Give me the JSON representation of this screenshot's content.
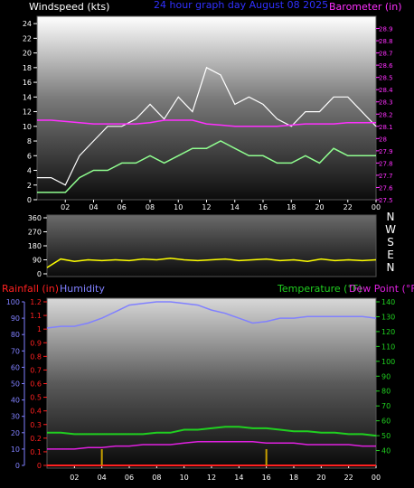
{
  "header": {
    "windspeed_label": "Windspeed (kts)",
    "title": "24 hour graph day   August 08 2025",
    "barometer_label": "Barometer (in)"
  },
  "lower_header": {
    "rainfall_label": "Rainfall (in)",
    "humidity_label": "Humidity",
    "temperature_label": "Temperature (°F)",
    "dewpoint_label": "Dew Point (°F)"
  },
  "colors": {
    "wind_axis": "#ffffff",
    "title": "#3030ff",
    "barometer": "#ff30ff",
    "wind_gust": "#ffffff",
    "wind_avg": "#90ff90",
    "direction": "#ffff00",
    "rainfall": "#ff2020",
    "humidity": "#8080ff",
    "temperature": "#20d020",
    "dewpoint": "#e020e0",
    "rain_tick": "#c8a000"
  },
  "chart_data": [
    {
      "type": "line",
      "name": "wind-barometer",
      "x_ticks": [
        "02",
        "04",
        "06",
        "08",
        "10",
        "12",
        "14",
        "16",
        "18",
        "20",
        "22",
        "00"
      ],
      "xlim": [
        0,
        24
      ],
      "left_axis": {
        "ticks": [
          0,
          2,
          4,
          6,
          8,
          10,
          12,
          14,
          16,
          18,
          20,
          22,
          24
        ],
        "ylim": [
          0,
          25
        ]
      },
      "right_axis": {
        "ticks": [
          "27.5",
          "27.6",
          "27.7",
          "27.8",
          "27.9",
          "28",
          "28.1",
          "28.2",
          "28.3",
          "28.4",
          "28.5",
          "28.6",
          "28.7",
          "28.8",
          "28.9"
        ],
        "ylim": [
          27.5,
          29.0
        ]
      },
      "series": [
        {
          "axis": "right",
          "x": [
            0,
            1,
            2,
            3,
            4,
            5,
            6,
            7,
            8,
            9,
            10,
            11,
            12,
            13,
            14,
            15,
            16,
            17,
            18,
            19,
            20,
            21,
            22,
            23,
            24
          ],
          "values": [
            28.15,
            28.15,
            28.14,
            28.13,
            28.12,
            28.12,
            28.12,
            28.12,
            28.13,
            28.15,
            28.15,
            28.15,
            28.12,
            28.11,
            28.1,
            28.1,
            28.1,
            28.1,
            28.11,
            28.12,
            28.12,
            28.12,
            28.13,
            28.13,
            28.13
          ]
        },
        {
          "axis": "left",
          "x": [
            0,
            1,
            2,
            3,
            4,
            5,
            6,
            7,
            8,
            9,
            10,
            11,
            12,
            13,
            14,
            15,
            16,
            17,
            18,
            19,
            20,
            21,
            22,
            23,
            24
          ],
          "values": [
            1,
            1,
            1,
            3,
            4,
            4,
            5,
            5,
            6,
            5,
            6,
            7,
            7,
            8,
            7,
            6,
            6,
            5,
            5,
            6,
            5,
            7,
            6,
            6,
            6
          ]
        },
        {
          "axis": "left",
          "x": [
            0,
            1,
            2,
            3,
            4,
            5,
            6,
            7,
            8,
            9,
            10,
            11,
            12,
            13,
            14,
            15,
            16,
            17,
            18,
            19,
            20,
            21,
            22,
            23,
            24
          ],
          "values": [
            3,
            3,
            2,
            6,
            8,
            10,
            10,
            11,
            13,
            11,
            14,
            12,
            18,
            17,
            13,
            14,
            13,
            11,
            10,
            12,
            12,
            14,
            14,
            12,
            10
          ]
        }
      ]
    },
    {
      "type": "line",
      "name": "wind-direction",
      "x_ticks": [
        "02",
        "04",
        "06",
        "08",
        "10",
        "12",
        "14",
        "16",
        "18",
        "20",
        "22",
        "00"
      ],
      "xlim": [
        0,
        24
      ],
      "y_ticks": [
        0,
        90,
        180,
        270,
        360
      ],
      "ylim": [
        0,
        360
      ],
      "compass_labels": [
        "N",
        "W",
        "S",
        "E",
        "N"
      ],
      "series": [
        {
          "x": [
            0,
            1,
            2,
            3,
            4,
            5,
            6,
            7,
            8,
            9,
            10,
            11,
            12,
            13,
            14,
            15,
            16,
            17,
            18,
            19,
            20,
            21,
            22,
            23,
            24
          ],
          "values": [
            40,
            95,
            80,
            90,
            85,
            90,
            85,
            95,
            90,
            100,
            90,
            85,
            90,
            95,
            85,
            90,
            95,
            85,
            90,
            80,
            95,
            85,
            90,
            85,
            90
          ]
        }
      ]
    },
    {
      "type": "line",
      "name": "temp-humidity-rain",
      "x_ticks": [
        "02",
        "04",
        "06",
        "08",
        "10",
        "12",
        "14",
        "16",
        "18",
        "20",
        "22",
        "00"
      ],
      "xlim": [
        0,
        24
      ],
      "humidity_axis": {
        "ticks": [
          0,
          10,
          20,
          30,
          40,
          50,
          60,
          70,
          80,
          90,
          100
        ],
        "ylim": [
          0,
          100
        ]
      },
      "rain_axis": {
        "ticks": [
          "0",
          "0.1",
          "0.2",
          "0.3",
          "0.4",
          "0.5",
          "0.6",
          "0.7",
          "0.8",
          "0.9",
          "1",
          "1.1",
          "1.2"
        ],
        "ylim": [
          0,
          1.2
        ]
      },
      "temp_axis": {
        "ticks": [
          40,
          50,
          60,
          70,
          80,
          90,
          100,
          110,
          120,
          130,
          140
        ],
        "ylim": [
          30,
          140
        ]
      },
      "series": [
        {
          "axis": "humidity",
          "x": [
            0,
            1,
            2,
            3,
            4,
            5,
            6,
            7,
            8,
            9,
            10,
            11,
            12,
            13,
            14,
            15,
            16,
            17,
            18,
            19,
            20,
            21,
            22,
            23,
            24
          ],
          "values": [
            84,
            85,
            85,
            87,
            90,
            94,
            98,
            99,
            100,
            100,
            99,
            98,
            95,
            93,
            90,
            87,
            88,
            90,
            90,
            91,
            91,
            91,
            91,
            91,
            90
          ]
        },
        {
          "axis": "temp",
          "x": [
            0,
            1,
            2,
            3,
            4,
            5,
            6,
            7,
            8,
            9,
            10,
            11,
            12,
            13,
            14,
            15,
            16,
            17,
            18,
            19,
            20,
            21,
            22,
            23,
            24
          ],
          "values": [
            52,
            52,
            51,
            51,
            51,
            51,
            51,
            51,
            52,
            52,
            54,
            54,
            55,
            56,
            56,
            55,
            55,
            54,
            53,
            53,
            52,
            52,
            51,
            51,
            50
          ]
        },
        {
          "axis": "temp",
          "x": [
            0,
            1,
            2,
            3,
            4,
            5,
            6,
            7,
            8,
            9,
            10,
            11,
            12,
            13,
            14,
            15,
            16,
            17,
            18,
            19,
            20,
            21,
            22,
            23,
            24
          ],
          "values": [
            41,
            41,
            41,
            42,
            42,
            43,
            43,
            44,
            44,
            44,
            45,
            46,
            46,
            46,
            46,
            46,
            45,
            45,
            45,
            44,
            44,
            44,
            44,
            43,
            43
          ]
        },
        {
          "axis": "rain",
          "x": [
            0,
            24
          ],
          "values": [
            0,
            0
          ]
        }
      ],
      "rain_ticks_x": [
        4,
        16
      ]
    }
  ]
}
